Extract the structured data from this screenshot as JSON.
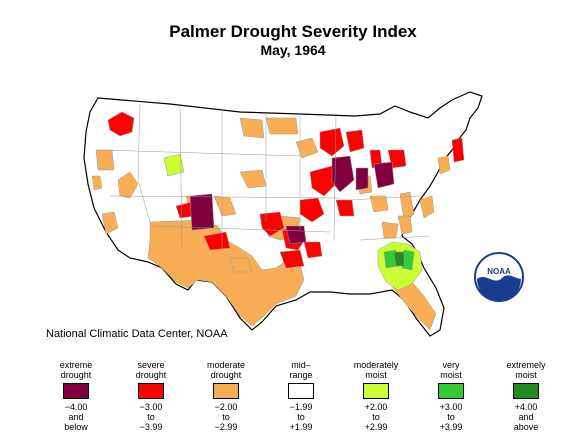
{
  "title": "Palmer Drought Severity Index",
  "subtitle": "May, 1964",
  "credit": "National Climatic Data Center, NOAA",
  "logo_text": "NOAA",
  "colors": {
    "extreme_drought": "#800040",
    "severe_drought": "#ff0000",
    "moderate_drought": "#f9ae55",
    "mid_range": "#ffffff",
    "moderately_moist": "#ccff33",
    "very_moist": "#33cc33",
    "extremely_moist": "#228b22",
    "border": "#9a9a9a",
    "outline": "#000000"
  },
  "legend": [
    {
      "label": [
        "extreme",
        "drought"
      ],
      "range": [
        "−4.00",
        "and",
        "below"
      ],
      "color": "#800040"
    },
    {
      "label": [
        "severe",
        "drought"
      ],
      "range": [
        "−3.00",
        "to",
        "−3.99"
      ],
      "color": "#ff0000"
    },
    {
      "label": [
        "moderate",
        "drought"
      ],
      "range": [
        "−2.00",
        "to",
        "−2.99"
      ],
      "color": "#f9ae55"
    },
    {
      "label": [
        "mid–",
        "range"
      ],
      "range": [
        "−1.99",
        "to",
        "+1.99"
      ],
      "color": "#ffffff"
    },
    {
      "label": [
        "moderately",
        "moist"
      ],
      "range": [
        "+2.00",
        "to",
        "+2.99"
      ],
      "color": "#ccff33"
    },
    {
      "label": [
        "very",
        "moist"
      ],
      "range": [
        "+3.00",
        "to",
        "+3.99"
      ],
      "color": "#33cc33"
    },
    {
      "label": [
        "extremely",
        "moist"
      ],
      "range": [
        "+4.00",
        "and",
        "above"
      ],
      "color": "#228b22"
    }
  ]
}
